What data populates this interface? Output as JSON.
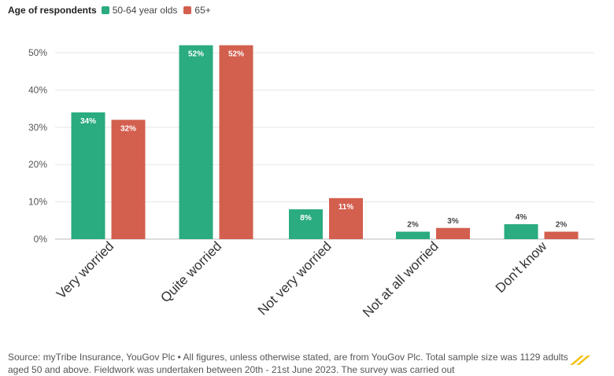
{
  "legend": {
    "title": "Age of respondents",
    "items": [
      {
        "label": "50-64 year olds",
        "color": "#2aab80"
      },
      {
        "label": "65+",
        "color": "#d35f4e"
      }
    ]
  },
  "chart_data": {
    "type": "bar",
    "title": "",
    "xlabel": "",
    "ylabel": "",
    "ylim": [
      0,
      55
    ],
    "yticks": [
      0,
      10,
      20,
      30,
      40,
      50
    ],
    "ytick_labels": [
      "0%",
      "10%",
      "20%",
      "30%",
      "40%",
      "50%"
    ],
    "categories": [
      "Very worried",
      "Quite worried",
      "Not very worried",
      "Not at all worried",
      "Don't know"
    ],
    "series": [
      {
        "name": "50-64 year olds",
        "color": "#2aab80",
        "values": [
          34,
          52,
          8,
          2,
          4
        ],
        "labels": [
          "34%",
          "52%",
          "8%",
          "2%",
          "4%"
        ]
      },
      {
        "name": "65+",
        "color": "#d35f4e",
        "values": [
          32,
          52,
          11,
          3,
          2
        ],
        "labels": [
          "32%",
          "52%",
          "11%",
          "3%",
          "2%"
        ]
      }
    ],
    "grid": true
  },
  "source": {
    "text": "Source: myTribe Insurance, YouGov Plc • All figures, unless otherwise stated, are from YouGov Plc. Total sample size was 1129 adults aged 50 and above. Fieldwork was undertaken between 20th - 21st June 2023. The survey was carried out"
  }
}
